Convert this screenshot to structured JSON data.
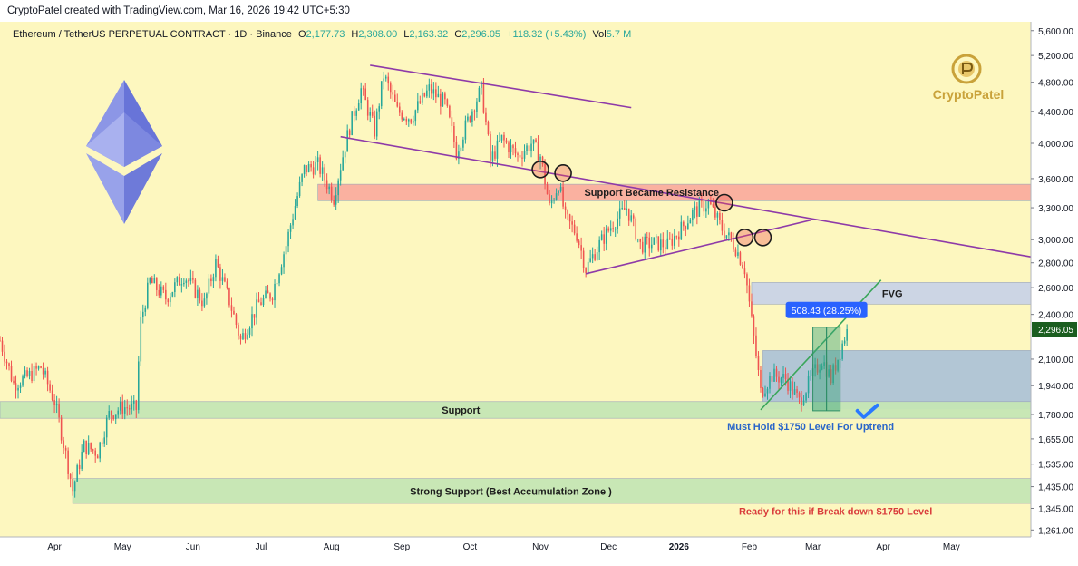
{
  "header": {
    "created_by": "CryptoPatel created with TradingView.com, Mar 16, 2026 19:42 UTC+5:30"
  },
  "legend": {
    "symbol": "Ethereum / TetherUS PERPETUAL CONTRACT · 1D · Binance",
    "open_label": "O",
    "open": "2,177.73",
    "high_label": "H",
    "high": "2,308.00",
    "low_label": "L",
    "low": "2,163.32",
    "close_label": "C",
    "close": "2,296.05",
    "change": "+118.32 (+5.43%)",
    "vol_label": "Vol",
    "vol": "5.7 M"
  },
  "watermark": {
    "text": "CryptoPatel"
  },
  "colors": {
    "background": "#fdf7bf",
    "up": "#26a69a",
    "down": "#ef5350",
    "trendline": "#8e3aa8",
    "resistance_zone": "#f9a59a",
    "support_zone": "#c5e6b4",
    "fvg_zone": "#c9d3e6",
    "range_zone": "#a5bdd8",
    "annotation_red": "#d93b3b",
    "annotation_blue": "#2965c9",
    "price_tag": "#1b5e20"
  },
  "chart_data": {
    "type": "candlestick",
    "price_scale": "log",
    "ylim": [
      1235,
      5750
    ],
    "xlabel": "",
    "ylabel": "",
    "y_ticks": [
      "5,600.00",
      "5,200.00",
      "4,800.00",
      "4,400.00",
      "4,000.00",
      "3,600.00",
      "3,300.00",
      "3,000.00",
      "2,800.00",
      "2,600.00",
      "2,400.00",
      "2,100.00",
      "1,940.00",
      "1,780.00",
      "1,655.00",
      "1,535.00",
      "1,435.00",
      "1,345.00",
      "1,261.00"
    ],
    "x_ticks": [
      "Apr",
      "May",
      "Jun",
      "Jul",
      "Aug",
      "Sep",
      "Oct",
      "Nov",
      "Dec",
      "2026",
      "Feb",
      "Mar",
      "Apr",
      "May"
    ],
    "x_range": [
      "2025-03-08",
      "2026-06-05"
    ],
    "last_price": "2,296.05",
    "price_path": [
      [
        "2025-03-08",
        2220
      ],
      [
        "2025-03-14",
        1950
      ],
      [
        "2025-03-20",
        1990
      ],
      [
        "2025-03-26",
        2050
      ],
      [
        "2025-04-01",
        1850
      ],
      [
        "2025-04-06",
        1580
      ],
      [
        "2025-04-09",
        1420
      ],
      [
        "2025-04-14",
        1620
      ],
      [
        "2025-04-20",
        1590
      ],
      [
        "2025-04-25",
        1780
      ],
      [
        "2025-05-01",
        1820
      ],
      [
        "2025-05-07",
        1810
      ],
      [
        "2025-05-09",
        2350
      ],
      [
        "2025-05-13",
        2650
      ],
      [
        "2025-05-20",
        2520
      ],
      [
        "2025-05-28",
        2700
      ],
      [
        "2025-06-06",
        2480
      ],
      [
        "2025-06-11",
        2800
      ],
      [
        "2025-06-17",
        2500
      ],
      [
        "2025-06-22",
        2220
      ],
      [
        "2025-06-30",
        2480
      ],
      [
        "2025-07-06",
        2560
      ],
      [
        "2025-07-12",
        2950
      ],
      [
        "2025-07-20",
        3700
      ],
      [
        "2025-07-26",
        3750
      ],
      [
        "2025-08-02",
        3400
      ],
      [
        "2025-08-09",
        4200
      ],
      [
        "2025-08-14",
        4700
      ],
      [
        "2025-08-20",
        4150
      ],
      [
        "2025-08-24",
        4900
      ],
      [
        "2025-08-30",
        4400
      ],
      [
        "2025-09-05",
        4320
      ],
      [
        "2025-09-13",
        4700
      ],
      [
        "2025-09-20",
        4500
      ],
      [
        "2025-09-25",
        3900
      ],
      [
        "2025-10-03",
        4500
      ],
      [
        "2025-10-06",
        4700
      ],
      [
        "2025-10-10",
        3800
      ],
      [
        "2025-10-15",
        4050
      ],
      [
        "2025-10-22",
        3850
      ],
      [
        "2025-10-28",
        4000
      ],
      [
        "2025-11-01",
        3850
      ],
      [
        "2025-11-05",
        3300
      ],
      [
        "2025-11-09",
        3550
      ],
      [
        "2025-11-12",
        3200
      ],
      [
        "2025-11-17",
        3050
      ],
      [
        "2025-11-21",
        2750
      ],
      [
        "2025-11-27",
        2960
      ],
      [
        "2025-12-03",
        3150
      ],
      [
        "2025-12-09",
        3300
      ],
      [
        "2025-12-15",
        2950
      ],
      [
        "2025-12-21",
        2970
      ],
      [
        "2025-12-27",
        2950
      ],
      [
        "2026-01-02",
        3100
      ],
      [
        "2026-01-07",
        3250
      ],
      [
        "2026-01-14",
        3350
      ],
      [
        "2026-01-20",
        3100
      ],
      [
        "2026-01-26",
        2930
      ],
      [
        "2026-01-30",
        2750
      ],
      [
        "2026-02-02",
        2350
      ],
      [
        "2026-02-06",
        1900
      ],
      [
        "2026-02-11",
        2000
      ],
      [
        "2026-02-17",
        1980
      ],
      [
        "2026-02-23",
        1850
      ],
      [
        "2026-03-01",
        2000
      ],
      [
        "2026-03-05",
        2100
      ],
      [
        "2026-03-09",
        1980
      ],
      [
        "2026-03-13",
        2150
      ],
      [
        "2026-03-16",
        2296
      ]
    ],
    "trendlines": [
      {
        "from": [
          "2025-08-18",
          5050
        ],
        "to": [
          "2025-12-11",
          4450
        ]
      },
      {
        "from": [
          "2025-08-05",
          4080
        ],
        "to": [
          "2026-06-05",
          2850
        ]
      },
      {
        "from": [
          "2025-11-21",
          2710
        ],
        "to": [
          "2026-02-28",
          3180
        ]
      },
      {
        "from": [
          "2026-02-06",
          1805
        ],
        "to": [
          "2026-03-31",
          2660
        ]
      }
    ],
    "zones": [
      {
        "label": "Support Became Resistance",
        "from": [
          "2025-07-26",
          3540
        ],
        "to": [
          "2026-06-05",
          3370
        ]
      },
      {
        "label": "FVG",
        "from": [
          "2026-02-02",
          2640
        ],
        "to": [
          "2026-06-05",
          2475
        ]
      },
      {
        "label": "",
        "from": [
          "2026-02-07",
          2155
        ],
        "to": [
          "2026-06-05",
          1810
        ]
      },
      {
        "label": "Support",
        "from": [
          "2025-03-08",
          1850
        ],
        "to": [
          "2026-06-05",
          1760
        ]
      },
      {
        "label": "Strong Support (Best Accumulation Zone )",
        "from": [
          "2025-04-09",
          1470
        ],
        "to": [
          "2026-06-05",
          1365
        ]
      }
    ],
    "markers": [
      [
        "2025-11-01",
        3700
      ],
      [
        "2025-11-11",
        3660
      ],
      [
        "2026-01-21",
        3350
      ],
      [
        "2026-01-30",
        3020
      ],
      [
        "2026-02-07",
        3020
      ]
    ],
    "measure": {
      "label": "508.43 (28.25%)",
      "from": [
        "2026-03-01",
        1800
      ],
      "to": [
        "2026-03-13",
        2310
      ]
    },
    "annotations": {
      "uptrend": "Must Hold $1750 Level For Uptrend",
      "breakdown": "Ready for this if Break down $1750 Level"
    }
  }
}
